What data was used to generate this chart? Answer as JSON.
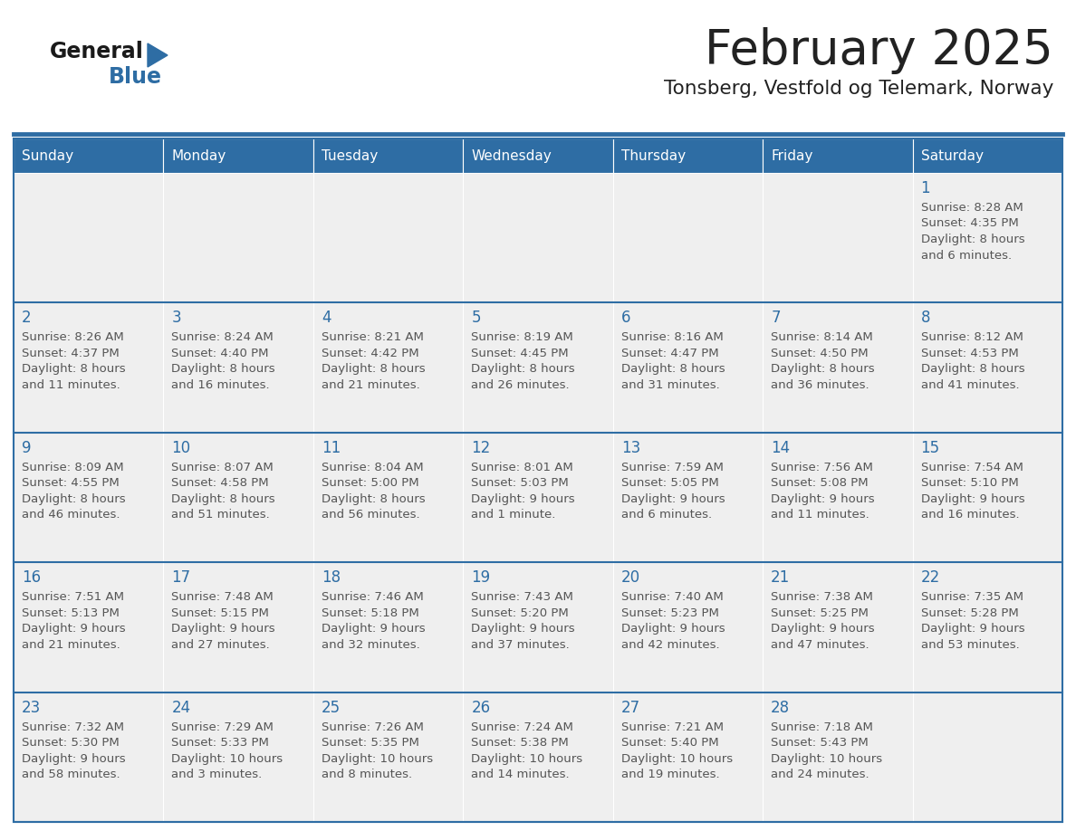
{
  "title": "February 2025",
  "subtitle": "Tonsberg, Vestfold og Telemark, Norway",
  "days_of_week": [
    "Sunday",
    "Monday",
    "Tuesday",
    "Wednesday",
    "Thursday",
    "Friday",
    "Saturday"
  ],
  "header_bg": "#2E6DA4",
  "header_text": "#FFFFFF",
  "cell_bg": "#EFEFEF",
  "border_color": "#2E6DA4",
  "day_num_color": "#2E6DA4",
  "text_color": "#555555",
  "title_color": "#222222",
  "logo_general_color": "#1a1a1a",
  "logo_blue_color": "#2E6DA4",
  "logo_triangle_color": "#2E6DA4",
  "weeks": [
    [
      {
        "day": null,
        "info": ""
      },
      {
        "day": null,
        "info": ""
      },
      {
        "day": null,
        "info": ""
      },
      {
        "day": null,
        "info": ""
      },
      {
        "day": null,
        "info": ""
      },
      {
        "day": null,
        "info": ""
      },
      {
        "day": 1,
        "info": "Sunrise: 8:28 AM\nSunset: 4:35 PM\nDaylight: 8 hours\nand 6 minutes."
      }
    ],
    [
      {
        "day": 2,
        "info": "Sunrise: 8:26 AM\nSunset: 4:37 PM\nDaylight: 8 hours\nand 11 minutes."
      },
      {
        "day": 3,
        "info": "Sunrise: 8:24 AM\nSunset: 4:40 PM\nDaylight: 8 hours\nand 16 minutes."
      },
      {
        "day": 4,
        "info": "Sunrise: 8:21 AM\nSunset: 4:42 PM\nDaylight: 8 hours\nand 21 minutes."
      },
      {
        "day": 5,
        "info": "Sunrise: 8:19 AM\nSunset: 4:45 PM\nDaylight: 8 hours\nand 26 minutes."
      },
      {
        "day": 6,
        "info": "Sunrise: 8:16 AM\nSunset: 4:47 PM\nDaylight: 8 hours\nand 31 minutes."
      },
      {
        "day": 7,
        "info": "Sunrise: 8:14 AM\nSunset: 4:50 PM\nDaylight: 8 hours\nand 36 minutes."
      },
      {
        "day": 8,
        "info": "Sunrise: 8:12 AM\nSunset: 4:53 PM\nDaylight: 8 hours\nand 41 minutes."
      }
    ],
    [
      {
        "day": 9,
        "info": "Sunrise: 8:09 AM\nSunset: 4:55 PM\nDaylight: 8 hours\nand 46 minutes."
      },
      {
        "day": 10,
        "info": "Sunrise: 8:07 AM\nSunset: 4:58 PM\nDaylight: 8 hours\nand 51 minutes."
      },
      {
        "day": 11,
        "info": "Sunrise: 8:04 AM\nSunset: 5:00 PM\nDaylight: 8 hours\nand 56 minutes."
      },
      {
        "day": 12,
        "info": "Sunrise: 8:01 AM\nSunset: 5:03 PM\nDaylight: 9 hours\nand 1 minute."
      },
      {
        "day": 13,
        "info": "Sunrise: 7:59 AM\nSunset: 5:05 PM\nDaylight: 9 hours\nand 6 minutes."
      },
      {
        "day": 14,
        "info": "Sunrise: 7:56 AM\nSunset: 5:08 PM\nDaylight: 9 hours\nand 11 minutes."
      },
      {
        "day": 15,
        "info": "Sunrise: 7:54 AM\nSunset: 5:10 PM\nDaylight: 9 hours\nand 16 minutes."
      }
    ],
    [
      {
        "day": 16,
        "info": "Sunrise: 7:51 AM\nSunset: 5:13 PM\nDaylight: 9 hours\nand 21 minutes."
      },
      {
        "day": 17,
        "info": "Sunrise: 7:48 AM\nSunset: 5:15 PM\nDaylight: 9 hours\nand 27 minutes."
      },
      {
        "day": 18,
        "info": "Sunrise: 7:46 AM\nSunset: 5:18 PM\nDaylight: 9 hours\nand 32 minutes."
      },
      {
        "day": 19,
        "info": "Sunrise: 7:43 AM\nSunset: 5:20 PM\nDaylight: 9 hours\nand 37 minutes."
      },
      {
        "day": 20,
        "info": "Sunrise: 7:40 AM\nSunset: 5:23 PM\nDaylight: 9 hours\nand 42 minutes."
      },
      {
        "day": 21,
        "info": "Sunrise: 7:38 AM\nSunset: 5:25 PM\nDaylight: 9 hours\nand 47 minutes."
      },
      {
        "day": 22,
        "info": "Sunrise: 7:35 AM\nSunset: 5:28 PM\nDaylight: 9 hours\nand 53 minutes."
      }
    ],
    [
      {
        "day": 23,
        "info": "Sunrise: 7:32 AM\nSunset: 5:30 PM\nDaylight: 9 hours\nand 58 minutes."
      },
      {
        "day": 24,
        "info": "Sunrise: 7:29 AM\nSunset: 5:33 PM\nDaylight: 10 hours\nand 3 minutes."
      },
      {
        "day": 25,
        "info": "Sunrise: 7:26 AM\nSunset: 5:35 PM\nDaylight: 10 hours\nand 8 minutes."
      },
      {
        "day": 26,
        "info": "Sunrise: 7:24 AM\nSunset: 5:38 PM\nDaylight: 10 hours\nand 14 minutes."
      },
      {
        "day": 27,
        "info": "Sunrise: 7:21 AM\nSunset: 5:40 PM\nDaylight: 10 hours\nand 19 minutes."
      },
      {
        "day": 28,
        "info": "Sunrise: 7:18 AM\nSunset: 5:43 PM\nDaylight: 10 hours\nand 24 minutes."
      },
      {
        "day": null,
        "info": ""
      }
    ]
  ]
}
